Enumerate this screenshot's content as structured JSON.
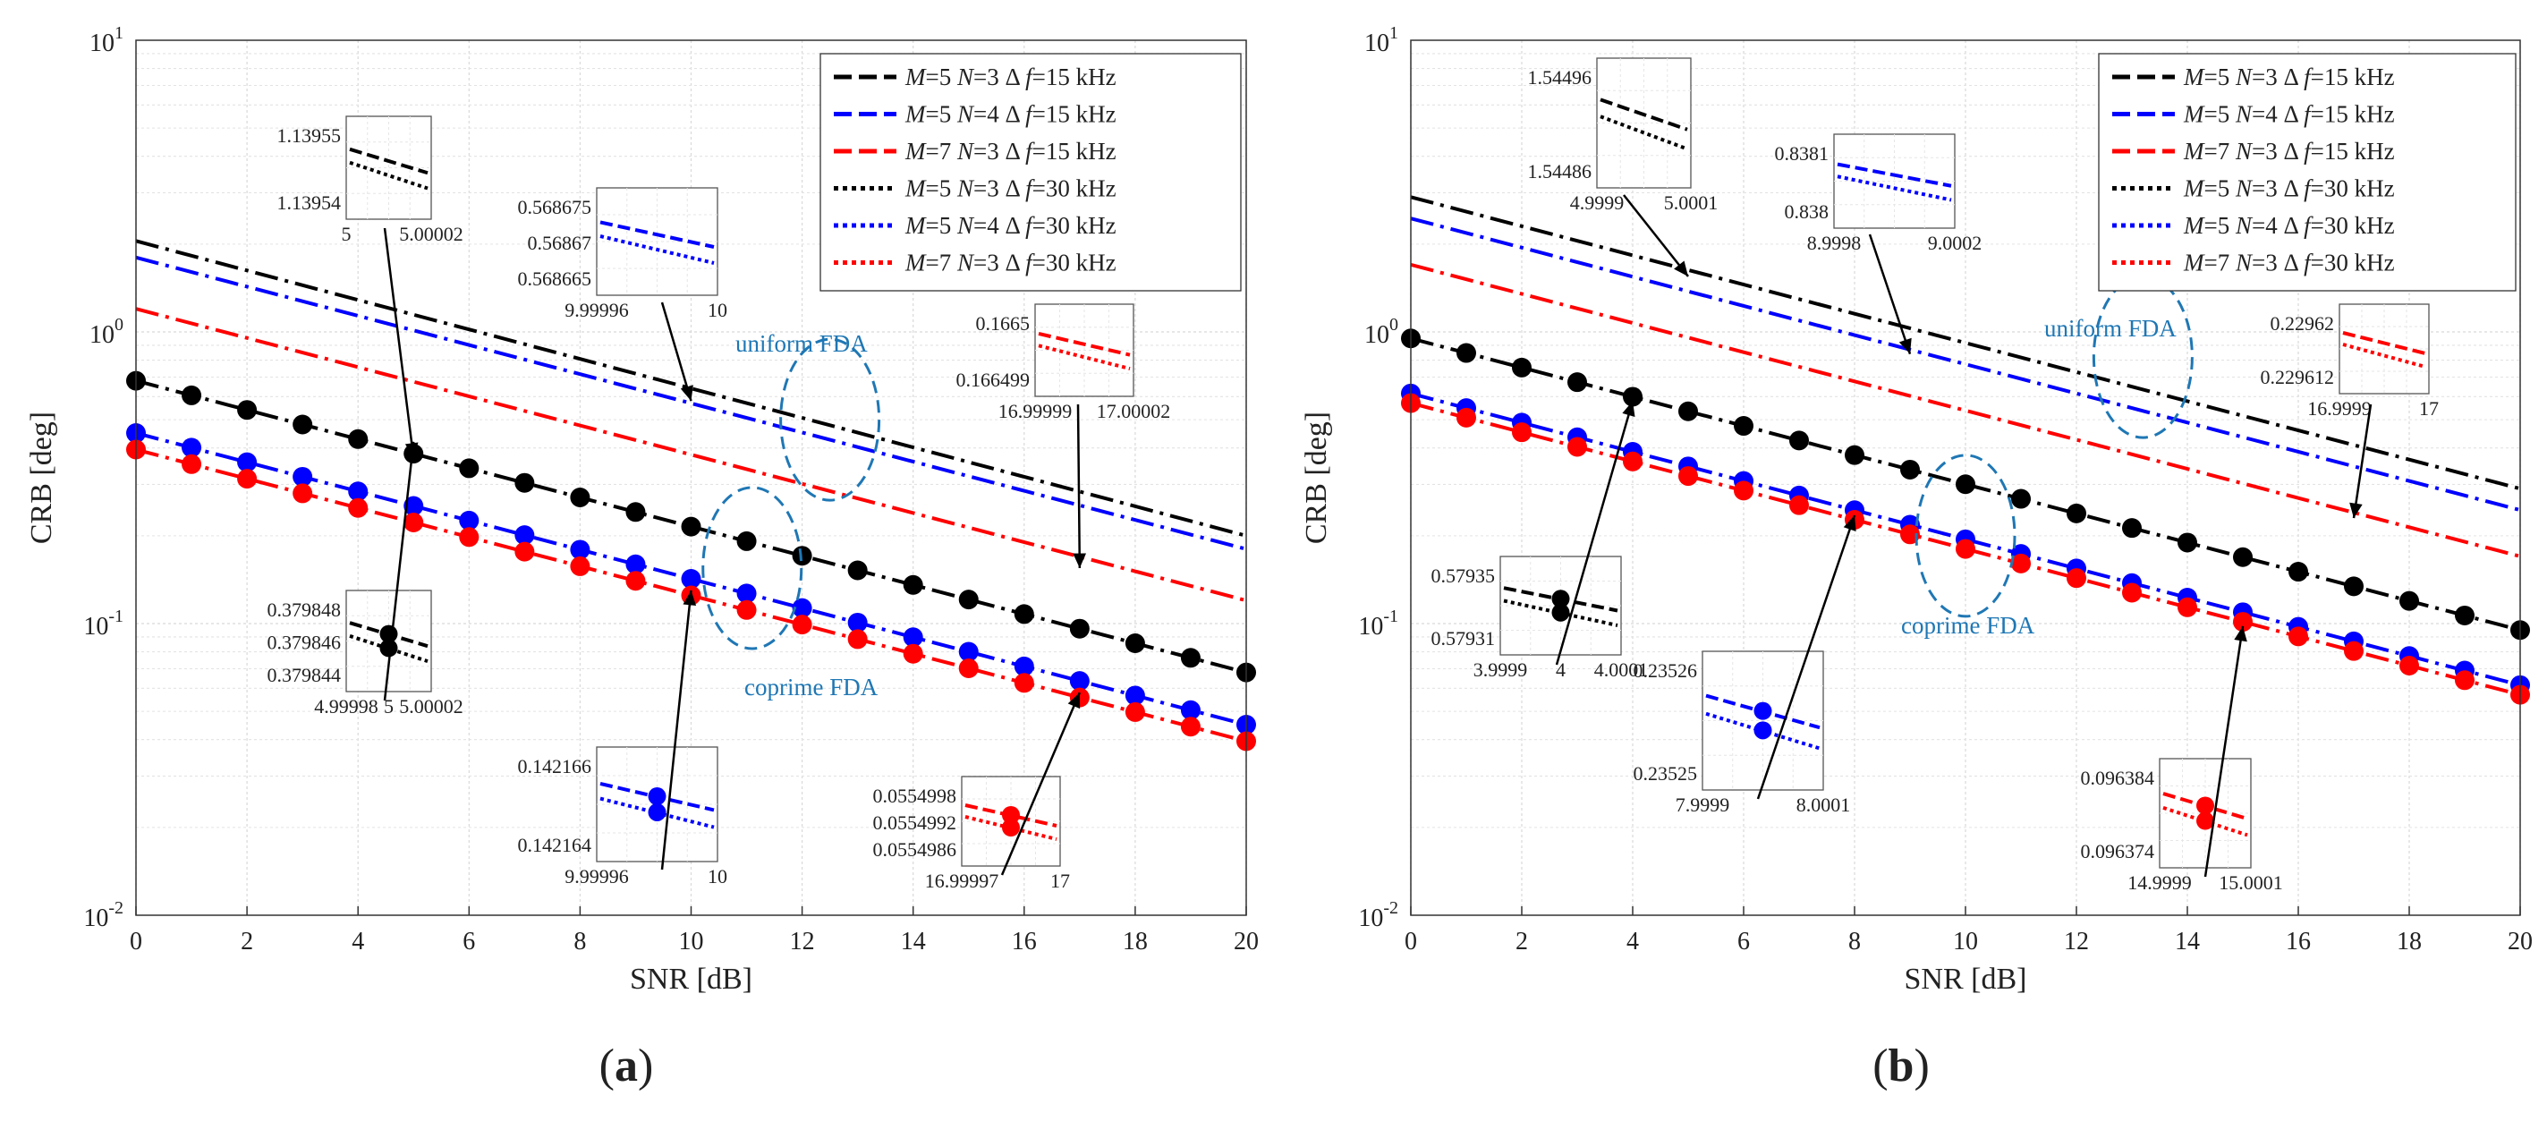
{
  "chart_data": [
    {
      "panel_label": "(a)",
      "type": "line",
      "xlabel": "SNR [dB]",
      "ylabel": "CRB [deg]",
      "xlim": [
        0,
        20
      ],
      "ylim": [
        0.01,
        10
      ],
      "yscale": "log",
      "xticks": [
        "0",
        "2",
        "4",
        "6",
        "8",
        "10",
        "12",
        "14",
        "16",
        "18",
        "20"
      ],
      "yticks": [
        {
          "base": "10",
          "exp": "1"
        },
        {
          "base": "10",
          "exp": "0"
        },
        {
          "base": "10",
          "exp": "-1"
        },
        {
          "base": "10",
          "exp": "-2"
        }
      ],
      "grid": true,
      "legend_position": "top-right",
      "legend": [
        {
          "label": "M=5 N=3 Δf=15 kHz",
          "M": "5",
          "N": "3",
          "df": "15",
          "color": "#000000",
          "style": "dashed"
        },
        {
          "label": "M=5 N=4 Δf=15 kHz",
          "M": "5",
          "N": "4",
          "df": "15",
          "color": "#0000ff",
          "style": "dashed"
        },
        {
          "label": "M=7 N=3 Δf=15 kHz",
          "M": "7",
          "N": "3",
          "df": "15",
          "color": "#ff0000",
          "style": "dashed"
        },
        {
          "label": "M=5 N=3 Δf=30 kHz",
          "M": "5",
          "N": "3",
          "df": "30",
          "color": "#000000",
          "style": "dotted"
        },
        {
          "label": "M=5 N=4 Δf=30 kHz",
          "M": "5",
          "N": "4",
          "df": "30",
          "color": "#0000ff",
          "style": "dotted"
        },
        {
          "label": "M=7 N=3 Δf=30 kHz",
          "M": "7",
          "N": "3",
          "df": "30",
          "color": "#ff0000",
          "style": "dotted"
        }
      ],
      "series": [
        {
          "name": "uniform FDA M=5 N=3",
          "color": "#000000",
          "y0": 2.05,
          "y20": 0.2,
          "markers": false
        },
        {
          "name": "uniform FDA M=5 N=4",
          "color": "#0000ff",
          "y0": 1.8,
          "y20": 0.18,
          "markers": false
        },
        {
          "name": "uniform FDA M=7 N=3",
          "color": "#ff0000",
          "y0": 1.2,
          "y20": 0.12,
          "markers": false
        },
        {
          "name": "coprime FDA M=5 N=3",
          "color": "#000000",
          "y0": 0.68,
          "y20": 0.068,
          "markers": true
        },
        {
          "name": "coprime FDA M=5 N=4",
          "color": "#0000ff",
          "y0": 0.45,
          "y20": 0.045,
          "markers": true
        },
        {
          "name": "coprime FDA M=7 N=3",
          "color": "#ff0000",
          "y0": 0.395,
          "y20": 0.0395,
          "markers": true
        }
      ],
      "annotations": [
        {
          "text": "uniform FDA",
          "x": 12.5,
          "y": 0.5
        },
        {
          "text": "coprime FDA",
          "x": 12.6,
          "y": 0.074
        }
      ],
      "insets": [
        {
          "y_labels": [
            "1.13955",
            "1.13954"
          ],
          "x_labels": [
            "5",
            "5.00002"
          ],
          "color": "#000000",
          "dots": false,
          "target": [
            5.0,
            0.37
          ]
        },
        {
          "y_labels": [
            "0.568675",
            "0.56867",
            "0.568665"
          ],
          "x_labels": [
            "9.99996",
            "10"
          ],
          "color": "#0000ff",
          "dots": false,
          "target": [
            10.0,
            0.58
          ]
        },
        {
          "y_labels": [
            "0.1665",
            "0.166499"
          ],
          "x_labels": [
            "16.99999",
            "17.00002"
          ],
          "color": "#ff0000",
          "dots": false,
          "target": [
            17.0,
            0.155
          ]
        },
        {
          "y_labels": [
            "0.379848",
            "0.379846",
            "0.379844"
          ],
          "x_labels": [
            "4.99998",
            "5",
            "5.00002"
          ],
          "color": "#000000",
          "dots": true,
          "target": [
            5.0,
            0.42
          ]
        },
        {
          "y_labels": [
            "0.142166",
            "0.142164"
          ],
          "x_labels": [
            "9.99996",
            "10"
          ],
          "color": "#0000ff",
          "dots": true,
          "target": [
            10.0,
            0.13
          ]
        },
        {
          "y_labels": [
            "0.0554998",
            "0.0554992",
            "0.0554986"
          ],
          "x_labels": [
            "16.99997",
            "17"
          ],
          "color": "#ff0000",
          "dots": true,
          "target": [
            17.0,
            0.058
          ]
        }
      ]
    },
    {
      "panel_label": "(b)",
      "type": "line",
      "xlabel": "SNR [dB]",
      "ylabel": "CRB [deg]",
      "xlim": [
        0,
        20
      ],
      "ylim": [
        0.01,
        10
      ],
      "yscale": "log",
      "xticks": [
        "0",
        "2",
        "4",
        "6",
        "8",
        "10",
        "12",
        "14",
        "16",
        "18",
        "20"
      ],
      "yticks": [
        {
          "base": "10",
          "exp": "1"
        },
        {
          "base": "10",
          "exp": "0"
        },
        {
          "base": "10",
          "exp": "-1"
        },
        {
          "base": "10",
          "exp": "-2"
        }
      ],
      "grid": true,
      "legend_position": "top-right",
      "legend": [
        {
          "label": "M=5 N=3 Δf=15 kHz",
          "M": "5",
          "N": "3",
          "df": "15",
          "color": "#000000",
          "style": "dashed"
        },
        {
          "label": "M=5 N=4 Δf=15 kHz",
          "M": "5",
          "N": "4",
          "df": "15",
          "color": "#0000ff",
          "style": "dashed"
        },
        {
          "label": "M=7 N=3 Δf=15 kHz",
          "M": "7",
          "N": "3",
          "df": "15",
          "color": "#ff0000",
          "style": "dashed"
        },
        {
          "label": "M=5 N=3 Δf=30 kHz",
          "M": "5",
          "N": "3",
          "df": "30",
          "color": "#000000",
          "style": "dotted"
        },
        {
          "label": "M=5 N=4 Δf=30 kHz",
          "M": "5",
          "N": "4",
          "df": "30",
          "color": "#0000ff",
          "style": "dotted"
        },
        {
          "label": "M=7 N=3 Δf=30 kHz",
          "M": "7",
          "N": "3",
          "df": "30",
          "color": "#ff0000",
          "style": "dotted"
        }
      ],
      "series": [
        {
          "name": "uniform FDA M=5 N=3",
          "color": "#000000",
          "y0": 2.9,
          "y20": 0.29,
          "markers": false
        },
        {
          "name": "uniform FDA M=5 N=4",
          "color": "#0000ff",
          "y0": 2.45,
          "y20": 0.245,
          "markers": false
        },
        {
          "name": "uniform FDA M=7 N=3",
          "color": "#ff0000",
          "y0": 1.7,
          "y20": 0.17,
          "markers": false
        },
        {
          "name": "coprime FDA M=5 N=3",
          "color": "#000000",
          "y0": 0.95,
          "y20": 0.095,
          "markers": true
        },
        {
          "name": "coprime FDA M=5 N=4",
          "color": "#0000ff",
          "y0": 0.615,
          "y20": 0.0615,
          "markers": true
        },
        {
          "name": "coprime FDA M=7 N=3",
          "color": "#ff0000",
          "y0": 0.57,
          "y20": 0.057,
          "markers": true
        }
      ],
      "annotations": [
        {
          "text": "uniform FDA",
          "x": 13.2,
          "y": 0.83
        },
        {
          "text": "coprime FDA",
          "x": 10.2,
          "y": 0.113
        }
      ],
      "insets": [
        {
          "y_labels": [
            "1.54496",
            "1.54486"
          ],
          "x_labels": [
            "4.9999",
            "5.0001"
          ],
          "color": "#000000",
          "dots": false,
          "target": [
            5.0,
            1.55
          ]
        },
        {
          "y_labels": [
            "0.8381",
            "0.838"
          ],
          "x_labels": [
            "8.9998",
            "9.0002"
          ],
          "color": "#0000ff",
          "dots": false,
          "target": [
            9.0,
            0.84
          ]
        },
        {
          "y_labels": [
            "0.22962",
            "0.229612"
          ],
          "x_labels": [
            "16.9999",
            "17"
          ],
          "color": "#ff0000",
          "dots": false,
          "target": [
            17.0,
            0.23
          ]
        },
        {
          "y_labels": [
            "0.57935",
            "0.57931"
          ],
          "x_labels": [
            "3.9999",
            "4",
            "4.0001"
          ],
          "color": "#000000",
          "dots": true,
          "target": [
            4.0,
            0.58
          ]
        },
        {
          "y_labels": [
            "0.23526",
            "0.23525"
          ],
          "x_labels": [
            "7.9999",
            "8.0001"
          ],
          "color": "#0000ff",
          "dots": true,
          "target": [
            8.0,
            0.235
          ]
        },
        {
          "y_labels": [
            "0.096384",
            "0.096374"
          ],
          "x_labels": [
            "14.9999",
            "15.0001"
          ],
          "color": "#ff0000",
          "dots": true,
          "target": [
            15.0,
            0.098
          ]
        }
      ]
    }
  ]
}
